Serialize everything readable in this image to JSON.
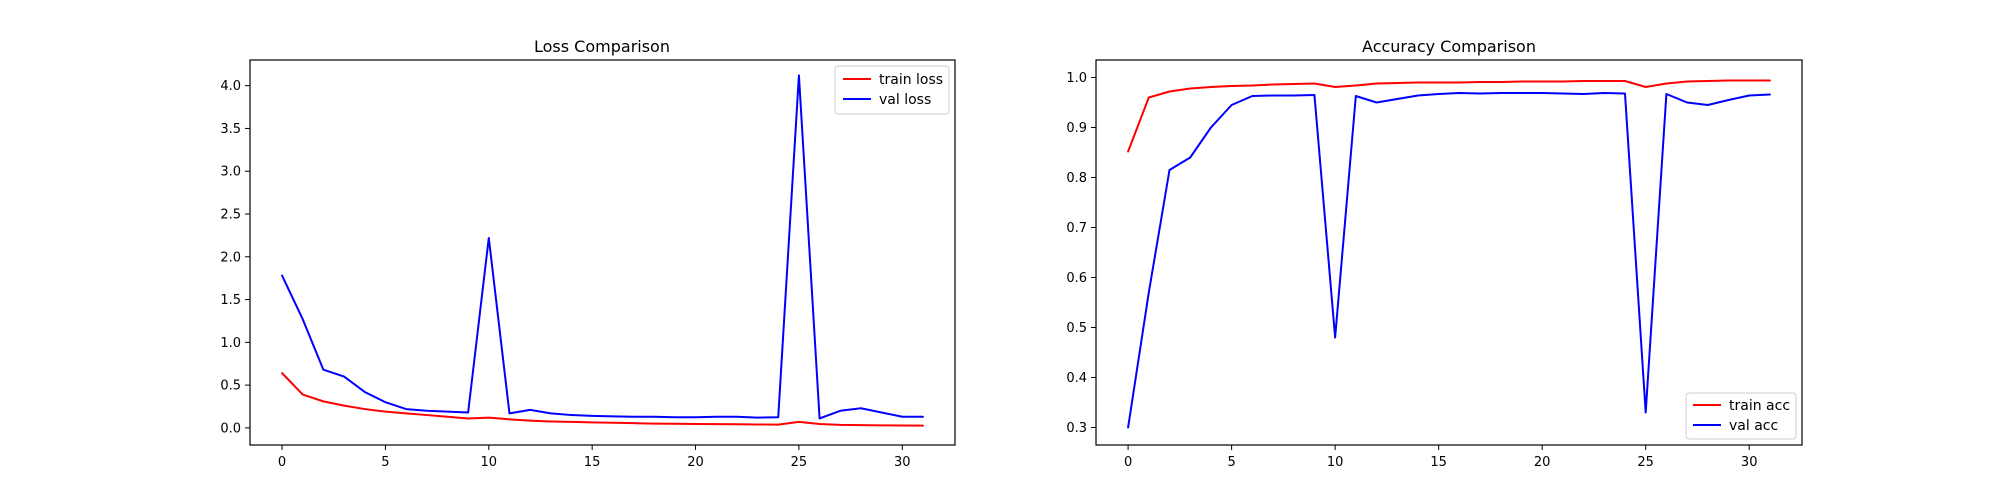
{
  "chart_data": [
    {
      "type": "line",
      "title": "Loss Comparison",
      "xlabel": "",
      "ylabel": "",
      "xlim": [
        -1.55,
        32.55
      ],
      "ylim": [
        -0.2,
        4.3
      ],
      "xticks": [
        0,
        5,
        10,
        15,
        20,
        25,
        30
      ],
      "yticks": [
        0.0,
        0.5,
        1.0,
        1.5,
        2.0,
        2.5,
        3.0,
        3.5,
        4.0
      ],
      "ytick_decimals": 1,
      "legend_position": "top-right",
      "grid": false,
      "x": [
        0,
        1,
        2,
        3,
        4,
        5,
        6,
        7,
        8,
        9,
        10,
        11,
        12,
        13,
        14,
        15,
        16,
        17,
        18,
        19,
        20,
        21,
        22,
        23,
        24,
        25,
        26,
        27,
        28,
        29,
        30,
        31
      ],
      "series": [
        {
          "name": "train loss",
          "color": "#ff0000",
          "values": [
            0.64,
            0.39,
            0.31,
            0.26,
            0.22,
            0.19,
            0.17,
            0.15,
            0.13,
            0.11,
            0.12,
            0.1,
            0.085,
            0.075,
            0.07,
            0.065,
            0.06,
            0.055,
            0.05,
            0.048,
            0.045,
            0.044,
            0.042,
            0.04,
            0.038,
            0.07,
            0.045,
            0.035,
            0.032,
            0.03,
            0.028,
            0.026
          ]
        },
        {
          "name": "val loss",
          "color": "#0000ff",
          "values": [
            1.78,
            1.27,
            0.68,
            0.6,
            0.42,
            0.3,
            0.22,
            0.2,
            0.19,
            0.18,
            2.22,
            0.17,
            0.21,
            0.17,
            0.15,
            0.14,
            0.135,
            0.13,
            0.13,
            0.125,
            0.125,
            0.13,
            0.13,
            0.12,
            0.125,
            4.12,
            0.11,
            0.2,
            0.23,
            0.18,
            0.13,
            0.13
          ]
        }
      ]
    },
    {
      "type": "line",
      "title": "Accuracy Comparison",
      "xlabel": "",
      "ylabel": "",
      "xlim": [
        -1.55,
        32.55
      ],
      "ylim": [
        0.265,
        1.035
      ],
      "xticks": [
        0,
        5,
        10,
        15,
        20,
        25,
        30
      ],
      "yticks": [
        0.3,
        0.4,
        0.5,
        0.6,
        0.7,
        0.8,
        0.9,
        1.0
      ],
      "ytick_decimals": 1,
      "legend_position": "bottom-right",
      "grid": false,
      "x": [
        0,
        1,
        2,
        3,
        4,
        5,
        6,
        7,
        8,
        9,
        10,
        11,
        12,
        13,
        14,
        15,
        16,
        17,
        18,
        19,
        20,
        21,
        22,
        23,
        24,
        25,
        26,
        27,
        28,
        29,
        30,
        31
      ],
      "series": [
        {
          "name": "train acc",
          "color": "#ff0000",
          "values": [
            0.852,
            0.96,
            0.972,
            0.978,
            0.981,
            0.983,
            0.984,
            0.986,
            0.987,
            0.988,
            0.981,
            0.984,
            0.988,
            0.989,
            0.99,
            0.99,
            0.99,
            0.991,
            0.991,
            0.992,
            0.992,
            0.992,
            0.993,
            0.993,
            0.993,
            0.981,
            0.988,
            0.992,
            0.993,
            0.994,
            0.994,
            0.994
          ]
        },
        {
          "name": "val acc",
          "color": "#0000ff",
          "values": [
            0.3,
            0.57,
            0.815,
            0.84,
            0.9,
            0.945,
            0.963,
            0.964,
            0.964,
            0.965,
            0.48,
            0.963,
            0.95,
            0.957,
            0.964,
            0.967,
            0.969,
            0.968,
            0.969,
            0.969,
            0.969,
            0.968,
            0.967,
            0.969,
            0.968,
            0.33,
            0.967,
            0.95,
            0.945,
            0.955,
            0.964,
            0.966
          ]
        }
      ]
    }
  ]
}
